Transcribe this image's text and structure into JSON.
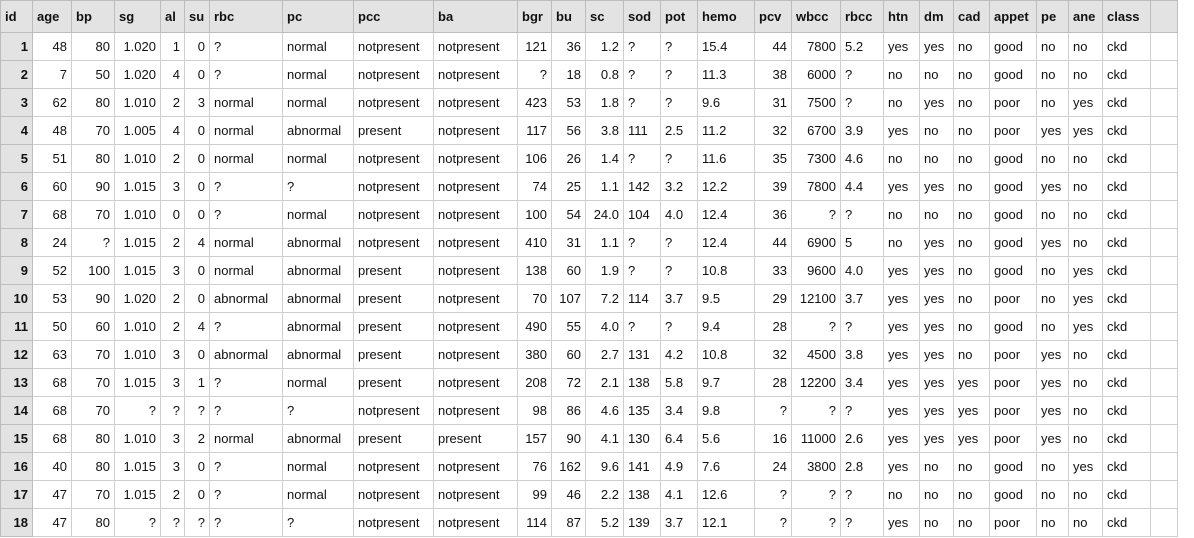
{
  "columns": [
    {
      "key": "id",
      "label": "id",
      "align": "left",
      "width": 32
    },
    {
      "key": "age",
      "label": "age",
      "align": "right",
      "width": 39
    },
    {
      "key": "bp",
      "label": "bp",
      "align": "right",
      "width": 43
    },
    {
      "key": "sg",
      "label": "sg",
      "align": "right",
      "width": 46
    },
    {
      "key": "al",
      "label": "al",
      "align": "right",
      "width": 24
    },
    {
      "key": "su",
      "label": "su",
      "align": "right",
      "width": 25
    },
    {
      "key": "rbc",
      "label": "rbc",
      "align": "left",
      "width": 73
    },
    {
      "key": "pc",
      "label": "pc",
      "align": "left",
      "width": 71
    },
    {
      "key": "pcc",
      "label": "pcc",
      "align": "left",
      "width": 80
    },
    {
      "key": "ba",
      "label": "ba",
      "align": "left",
      "width": 84
    },
    {
      "key": "bgr",
      "label": "bgr",
      "align": "right",
      "width": 34
    },
    {
      "key": "bu",
      "label": "bu",
      "align": "right",
      "width": 34
    },
    {
      "key": "sc",
      "label": "sc",
      "align": "right",
      "width": 38
    },
    {
      "key": "sod",
      "label": "sod",
      "align": "left",
      "width": 37
    },
    {
      "key": "pot",
      "label": "pot",
      "align": "left",
      "width": 37
    },
    {
      "key": "hemo",
      "label": "hemo",
      "align": "left",
      "width": 57
    },
    {
      "key": "pcv",
      "label": "pcv",
      "align": "right",
      "width": 37
    },
    {
      "key": "wbcc",
      "label": "wbcc",
      "align": "right",
      "width": 49
    },
    {
      "key": "rbcc",
      "label": "rbcc",
      "align": "left",
      "width": 43
    },
    {
      "key": "htn",
      "label": "htn",
      "align": "left",
      "width": 36
    },
    {
      "key": "dm",
      "label": "dm",
      "align": "left",
      "width": 34
    },
    {
      "key": "cad",
      "label": "cad",
      "align": "left",
      "width": 36
    },
    {
      "key": "appet",
      "label": "appet",
      "align": "left",
      "width": 47
    },
    {
      "key": "pe",
      "label": "pe",
      "align": "left",
      "width": 32
    },
    {
      "key": "ane",
      "label": "ane",
      "align": "left",
      "width": 34
    },
    {
      "key": "class",
      "label": "class",
      "align": "left",
      "width": 48
    },
    {
      "key": "extra",
      "label": "",
      "align": "left",
      "width": 27
    }
  ],
  "rows": [
    [
      "1",
      "48",
      "80",
      "1.020",
      "1",
      "0",
      "?",
      "normal",
      "notpresent",
      "notpresent",
      "121",
      "36",
      "1.2",
      "?",
      "?",
      "15.4",
      "44",
      "7800",
      "5.2",
      "yes",
      "yes",
      "no",
      "good",
      "no",
      "no",
      "ckd",
      ""
    ],
    [
      "2",
      "7",
      "50",
      "1.020",
      "4",
      "0",
      "?",
      "normal",
      "notpresent",
      "notpresent",
      "?",
      "18",
      "0.8",
      "?",
      "?",
      "11.3",
      "38",
      "6000",
      "?",
      "no",
      "no",
      "no",
      "good",
      "no",
      "no",
      "ckd",
      ""
    ],
    [
      "3",
      "62",
      "80",
      "1.010",
      "2",
      "3",
      "normal",
      "normal",
      "notpresent",
      "notpresent",
      "423",
      "53",
      "1.8",
      "?",
      "?",
      "9.6",
      "31",
      "7500",
      "?",
      "no",
      "yes",
      "no",
      "poor",
      "no",
      "yes",
      "ckd",
      ""
    ],
    [
      "4",
      "48",
      "70",
      "1.005",
      "4",
      "0",
      "normal",
      "abnormal",
      "present",
      "notpresent",
      "117",
      "56",
      "3.8",
      "111",
      "2.5",
      "11.2",
      "32",
      "6700",
      "3.9",
      "yes",
      "no",
      "no",
      "poor",
      "yes",
      "yes",
      "ckd",
      ""
    ],
    [
      "5",
      "51",
      "80",
      "1.010",
      "2",
      "0",
      "normal",
      "normal",
      "notpresent",
      "notpresent",
      "106",
      "26",
      "1.4",
      "?",
      "?",
      "11.6",
      "35",
      "7300",
      "4.6",
      "no",
      "no",
      "no",
      "good",
      "no",
      "no",
      "ckd",
      ""
    ],
    [
      "6",
      "60",
      "90",
      "1.015",
      "3",
      "0",
      "?",
      "?",
      "notpresent",
      "notpresent",
      "74",
      "25",
      "1.1",
      "142",
      "3.2",
      "12.2",
      "39",
      "7800",
      "4.4",
      "yes",
      "yes",
      "no",
      "good",
      "yes",
      "no",
      "ckd",
      ""
    ],
    [
      "7",
      "68",
      "70",
      "1.010",
      "0",
      "0",
      "?",
      "normal",
      "notpresent",
      "notpresent",
      "100",
      "54",
      "24.0",
      "104",
      "4.0",
      "12.4",
      "36",
      "?",
      "?",
      "no",
      "no",
      "no",
      "good",
      "no",
      "no",
      "ckd",
      ""
    ],
    [
      "8",
      "24",
      "?",
      "1.015",
      "2",
      "4",
      "normal",
      "abnormal",
      "notpresent",
      "notpresent",
      "410",
      "31",
      "1.1",
      "?",
      "?",
      "12.4",
      "44",
      "6900",
      "5",
      "no",
      "yes",
      "no",
      "good",
      "yes",
      "no",
      "ckd",
      ""
    ],
    [
      "9",
      "52",
      "100",
      "1.015",
      "3",
      "0",
      "normal",
      "abnormal",
      "present",
      "notpresent",
      "138",
      "60",
      "1.9",
      "?",
      "?",
      "10.8",
      "33",
      "9600",
      "4.0",
      "yes",
      "yes",
      "no",
      "good",
      "no",
      "yes",
      "ckd",
      ""
    ],
    [
      "10",
      "53",
      "90",
      "1.020",
      "2",
      "0",
      "abnormal",
      "abnormal",
      "present",
      "notpresent",
      "70",
      "107",
      "7.2",
      "114",
      "3.7",
      "9.5",
      "29",
      "12100",
      "3.7",
      "yes",
      "yes",
      "no",
      "poor",
      "no",
      "yes",
      "ckd",
      ""
    ],
    [
      "11",
      "50",
      "60",
      "1.010",
      "2",
      "4",
      "?",
      "abnormal",
      "present",
      "notpresent",
      "490",
      "55",
      "4.0",
      "?",
      "?",
      "9.4",
      "28",
      "?",
      "?",
      "yes",
      "yes",
      "no",
      "good",
      "no",
      "yes",
      "ckd",
      ""
    ],
    [
      "12",
      "63",
      "70",
      "1.010",
      "3",
      "0",
      "abnormal",
      "abnormal",
      "present",
      "notpresent",
      "380",
      "60",
      "2.7",
      "131",
      "4.2",
      "10.8",
      "32",
      "4500",
      "3.8",
      "yes",
      "yes",
      "no",
      "poor",
      "yes",
      "no",
      "ckd",
      ""
    ],
    [
      "13",
      "68",
      "70",
      "1.015",
      "3",
      "1",
      "?",
      "normal",
      "present",
      "notpresent",
      "208",
      "72",
      "2.1",
      "138",
      "5.8",
      "9.7",
      "28",
      "12200",
      "3.4",
      "yes",
      "yes",
      "yes",
      "poor",
      "yes",
      "no",
      "ckd",
      ""
    ],
    [
      "14",
      "68",
      "70",
      "?",
      "?",
      "?",
      "?",
      "?",
      "notpresent",
      "notpresent",
      "98",
      "86",
      "4.6",
      "135",
      "3.4",
      "9.8",
      "?",
      "?",
      "?",
      "yes",
      "yes",
      "yes",
      "poor",
      "yes",
      "no",
      "ckd",
      ""
    ],
    [
      "15",
      "68",
      "80",
      "1.010",
      "3",
      "2",
      "normal",
      "abnormal",
      "present",
      "present",
      "157",
      "90",
      "4.1",
      "130",
      "6.4",
      "5.6",
      "16",
      "11000",
      "2.6",
      "yes",
      "yes",
      "yes",
      "poor",
      "yes",
      "no",
      "ckd",
      ""
    ],
    [
      "16",
      "40",
      "80",
      "1.015",
      "3",
      "0",
      "?",
      "normal",
      "notpresent",
      "notpresent",
      "76",
      "162",
      "9.6",
      "141",
      "4.9",
      "7.6",
      "24",
      "3800",
      "2.8",
      "yes",
      "no",
      "no",
      "good",
      "no",
      "yes",
      "ckd",
      ""
    ],
    [
      "17",
      "47",
      "70",
      "1.015",
      "2",
      "0",
      "?",
      "normal",
      "notpresent",
      "notpresent",
      "99",
      "46",
      "2.2",
      "138",
      "4.1",
      "12.6",
      "?",
      "?",
      "?",
      "no",
      "no",
      "no",
      "good",
      "no",
      "no",
      "ckd",
      ""
    ],
    [
      "18",
      "47",
      "80",
      "?",
      "?",
      "?",
      "?",
      "?",
      "notpresent",
      "notpresent",
      "114",
      "87",
      "5.2",
      "139",
      "3.7",
      "12.1",
      "?",
      "?",
      "?",
      "yes",
      "no",
      "no",
      "poor",
      "no",
      "no",
      "ckd",
      ""
    ]
  ]
}
